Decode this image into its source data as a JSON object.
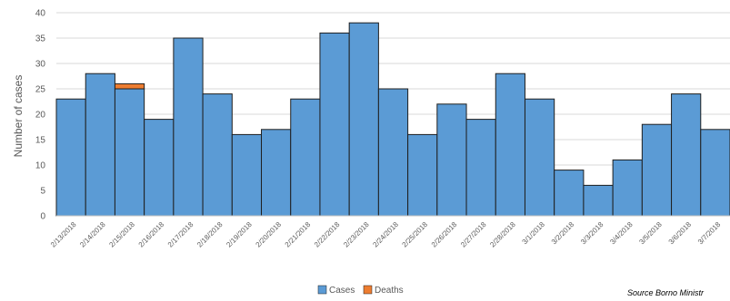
{
  "chart_data": {
    "type": "bar",
    "stacked": true,
    "categories": [
      "2/13/2018",
      "2/14/2018",
      "2/15/2018",
      "2/16/2018",
      "2/17/2018",
      "2/18/2018",
      "2/19/2018",
      "2/20/2018",
      "2/21/2018",
      "2/22/2018",
      "2/23/2018",
      "2/24/2018",
      "2/25/2018",
      "2/26/2018",
      "2/27/2018",
      "2/28/2018",
      "3/1/2018",
      "3/2/2018",
      "3/3/2018",
      "3/4/2018",
      "3/5/2018",
      "3/6/2018",
      "3/7/2018"
    ],
    "series": [
      {
        "name": "Cases",
        "color": "#5b9bd5",
        "values": [
          23,
          28,
          25,
          19,
          35,
          24,
          16,
          17,
          23,
          36,
          38,
          25,
          16,
          22,
          19,
          28,
          23,
          9,
          6,
          11,
          18,
          24,
          17
        ]
      },
      {
        "name": "Deaths",
        "color": "#ed7d31",
        "values": [
          0,
          0,
          1,
          0,
          0,
          0,
          0,
          0,
          0,
          0,
          0,
          0,
          0,
          0,
          0,
          0,
          0,
          0,
          0,
          0,
          0,
          0,
          0
        ]
      }
    ],
    "ylabel": "Number of cases",
    "xlabel": "",
    "ylim": [
      0,
      40
    ],
    "yticks": [
      0,
      5,
      10,
      15,
      20,
      25,
      30,
      35,
      40
    ],
    "grid": true,
    "legend_position": "bottom"
  },
  "source": "Source Borno Ministr"
}
